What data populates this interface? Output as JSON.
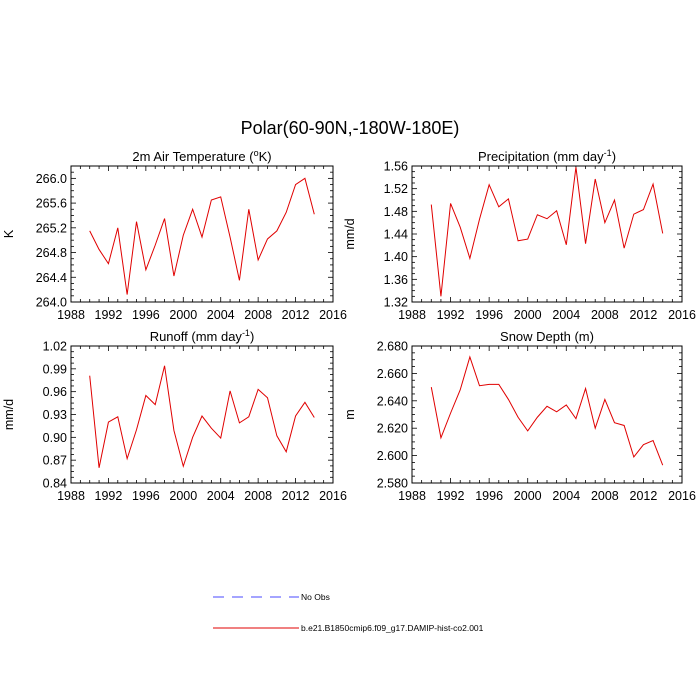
{
  "figure": {
    "title": "Polar(60-90N,-180W-180E)"
  },
  "legend": {
    "items": [
      {
        "label": "No Obs",
        "color": "#4a4aff",
        "dash": true
      },
      {
        "label": "b.e21.B1850cmip6.f09_g17.DAMIP-hist-co2.001",
        "color": "#e00000",
        "dash": false
      }
    ]
  },
  "chart_data": [
    {
      "type": "line",
      "title": "2m Air Temperature (°K)",
      "title_main": "2m Air Temperature (",
      "title_sup": "o",
      "title_tail": "K)",
      "ylabel": "K",
      "xlim": [
        1988,
        2016
      ],
      "xticks": [
        1988,
        1992,
        1996,
        2000,
        2004,
        2008,
        2012,
        2016
      ],
      "ylim": [
        264.0,
        266.2
      ],
      "yticks": [
        "264.0",
        "264.4",
        "264.8",
        "265.2",
        "265.6",
        "266.0"
      ],
      "series": [
        {
          "color": "#e00000",
          "x": [
            1990,
            1991,
            1992,
            1993,
            1994,
            1995,
            1996,
            1997,
            1998,
            1999,
            2000,
            2001,
            2002,
            2003,
            2004,
            2005,
            2006,
            2007,
            2008,
            2009,
            2010,
            2011,
            2012,
            2013,
            2014
          ],
          "y": [
            265.15,
            264.85,
            264.62,
            265.2,
            264.12,
            265.3,
            264.52,
            264.92,
            265.35,
            264.42,
            265.08,
            265.5,
            265.05,
            265.65,
            265.7,
            265.05,
            264.35,
            265.5,
            264.68,
            265.02,
            265.15,
            265.45,
            265.9,
            266.0,
            265.42
          ]
        }
      ]
    },
    {
      "type": "line",
      "title": "Precipitation (mm day-1)",
      "title_main": "Precipitation (mm day",
      "title_sup": "-1",
      "title_tail": ")",
      "ylabel": "mm/d",
      "xlim": [
        1988,
        2016
      ],
      "xticks": [
        1988,
        1992,
        1996,
        2000,
        2004,
        2008,
        2012,
        2016
      ],
      "ylim": [
        1.32,
        1.56
      ],
      "yticks": [
        "1.32",
        "1.36",
        "1.40",
        "1.44",
        "1.48",
        "1.52",
        "1.56"
      ],
      "series": [
        {
          "color": "#e00000",
          "x": [
            1990,
            1991,
            1992,
            1993,
            1994,
            1995,
            1996,
            1997,
            1998,
            1999,
            2000,
            2001,
            2002,
            2003,
            2004,
            2005,
            2006,
            2007,
            2008,
            2009,
            2010,
            2011,
            2012,
            2013,
            2014
          ],
          "y": [
            1.492,
            1.33,
            1.494,
            1.452,
            1.397,
            1.466,
            1.527,
            1.488,
            1.502,
            1.428,
            1.431,
            1.474,
            1.467,
            1.481,
            1.421,
            1.558,
            1.423,
            1.537,
            1.46,
            1.5,
            1.415,
            1.475,
            1.483,
            1.528,
            1.441
          ]
        }
      ]
    },
    {
      "type": "line",
      "title": "Runoff (mm day-1)",
      "title_main": "Runoff (mm day",
      "title_sup": "-1",
      "title_tail": ")",
      "ylabel": "mm/d",
      "xlim": [
        1988,
        2016
      ],
      "xticks": [
        1988,
        1992,
        1996,
        2000,
        2004,
        2008,
        2012,
        2016
      ],
      "ylim": [
        0.84,
        1.02
      ],
      "yticks": [
        "0.84",
        "0.87",
        "0.90",
        "0.93",
        "0.96",
        "0.99",
        "1.02"
      ],
      "series": [
        {
          "color": "#e00000",
          "x": [
            1990,
            1991,
            1992,
            1993,
            1994,
            1995,
            1996,
            1997,
            1998,
            1999,
            2000,
            2001,
            2002,
            2003,
            2004,
            2005,
            2006,
            2007,
            2008,
            2009,
            2010,
            2011,
            2012,
            2013,
            2014
          ],
          "y": [
            0.981,
            0.86,
            0.92,
            0.927,
            0.872,
            0.91,
            0.955,
            0.943,
            0.994,
            0.909,
            0.862,
            0.9,
            0.928,
            0.912,
            0.899,
            0.961,
            0.919,
            0.927,
            0.963,
            0.952,
            0.902,
            0.881,
            0.928,
            0.946,
            0.926
          ]
        }
      ]
    },
    {
      "type": "line",
      "title": "Snow Depth (m)",
      "title_main": "Snow Depth (m)",
      "title_sup": "",
      "title_tail": "",
      "ylabel": "m",
      "xlim": [
        1988,
        2016
      ],
      "xticks": [
        1988,
        1992,
        1996,
        2000,
        2004,
        2008,
        2012,
        2016
      ],
      "ylim": [
        2.58,
        2.68
      ],
      "yticks": [
        "2.580",
        "2.600",
        "2.620",
        "2.640",
        "2.660",
        "2.680"
      ],
      "series": [
        {
          "color": "#e00000",
          "x": [
            1990,
            1991,
            1992,
            1993,
            1994,
            1995,
            1996,
            1997,
            1998,
            1999,
            2000,
            2001,
            2002,
            2003,
            2004,
            2005,
            2006,
            2007,
            2008,
            2009,
            2010,
            2011,
            2012,
            2013,
            2014
          ],
          "y": [
            2.65,
            2.613,
            2.631,
            2.648,
            2.672,
            2.651,
            2.652,
            2.652,
            2.641,
            2.628,
            2.618,
            2.628,
            2.636,
            2.632,
            2.637,
            2.627,
            2.649,
            2.62,
            2.641,
            2.624,
            2.622,
            2.599,
            2.608,
            2.611,
            2.593
          ]
        }
      ]
    }
  ]
}
